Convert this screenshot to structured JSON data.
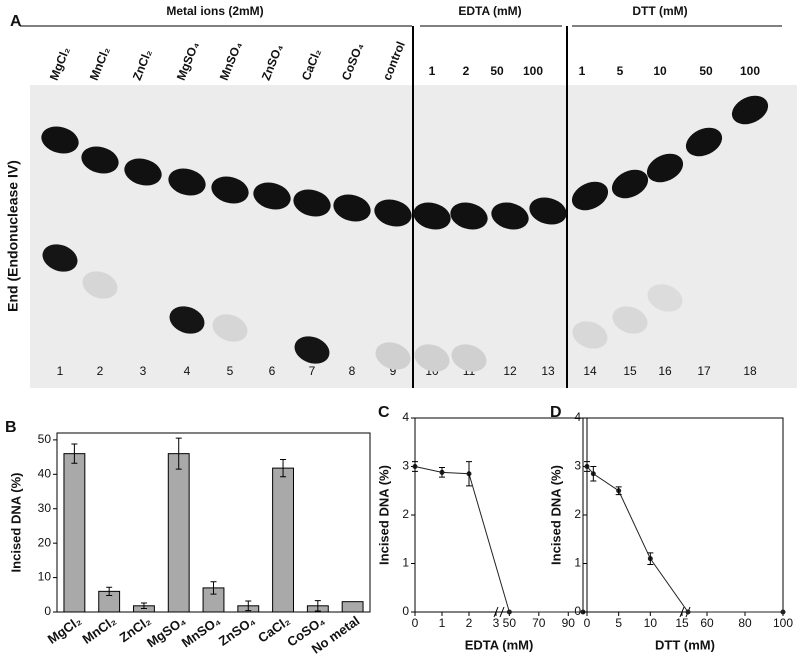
{
  "panel_a": {
    "letter": "A",
    "headers": [
      "Metal ions (2mM)",
      "EDTA (mM)",
      "DTT (mM)"
    ],
    "metal_lanes": [
      "MgCl₂",
      "MnCl₂",
      "ZnCl₂",
      "MgSO₄",
      "MnSO₄",
      "ZnSO₄",
      "CaCl₂",
      "CoSO₄",
      "control"
    ],
    "edta_lanes": [
      "1",
      "2",
      "50",
      "100"
    ],
    "dtt_lanes": [
      "1",
      "5",
      "10",
      "50",
      "100"
    ],
    "ylabel": "End (Endonuclease IV)",
    "lane_numbers": [
      "1",
      "2",
      "3",
      "4",
      "5",
      "6",
      "7",
      "8",
      "9",
      "10",
      "11",
      "12",
      "13",
      "14",
      "15",
      "16",
      "17",
      "18"
    ]
  },
  "chart_data": [
    {
      "type": "bar",
      "letter": "B",
      "ylabel": "Incised DNA (%)",
      "color": "#a9a9a9",
      "categories": [
        "MgCl₂",
        "MnCl₂",
        "ZnCl₂",
        "MgSO₄",
        "MnSO₄",
        "ZnSO₄",
        "CaCl₂",
        "CoSO₄",
        "No metal"
      ],
      "values": [
        46,
        6,
        1.8,
        46,
        7,
        1.8,
        41.8,
        1.8,
        3
      ],
      "errors": [
        2.8,
        1.2,
        0.8,
        4.5,
        1.8,
        1.4,
        2.5,
        1.5,
        0
      ],
      "ylim": [
        0,
        52
      ],
      "yticks": [
        0,
        10,
        20,
        30,
        40,
        50
      ]
    },
    {
      "type": "line",
      "letter": "C",
      "ylabel": "Incised DNA (%)",
      "xlabel": "EDTA (mM)",
      "color": "#222222",
      "x": [
        0,
        1,
        2,
        50,
        100
      ],
      "values": [
        3,
        2.88,
        2.85,
        0,
        0
      ],
      "errors": [
        0.1,
        0.1,
        0.25,
        0,
        0
      ],
      "xlim": [
        0,
        100
      ],
      "xbreak": [
        3,
        45
      ],
      "xticks": [
        0,
        1,
        2,
        3,
        50,
        70,
        90
      ],
      "ylim": [
        0,
        4
      ],
      "yticks": [
        0,
        1,
        2,
        3,
        4
      ]
    },
    {
      "type": "line",
      "letter": "D",
      "ylabel": "Incised DNA (%)",
      "xlabel": "DTT (mM)",
      "color": "#222222",
      "x": [
        0,
        1,
        5,
        10,
        50,
        100
      ],
      "values": [
        3,
        2.85,
        2.5,
        1.1,
        0,
        0
      ],
      "errors": [
        0.1,
        0.15,
        0.08,
        0.12,
        0,
        0
      ],
      "xlim": [
        0,
        100
      ],
      "xbreak": [
        15,
        50
      ],
      "xticks": [
        0,
        5,
        10,
        15,
        60,
        80,
        100
      ],
      "ylim": [
        0,
        4
      ],
      "yticks": [
        0,
        1,
        2,
        3,
        4
      ]
    }
  ]
}
